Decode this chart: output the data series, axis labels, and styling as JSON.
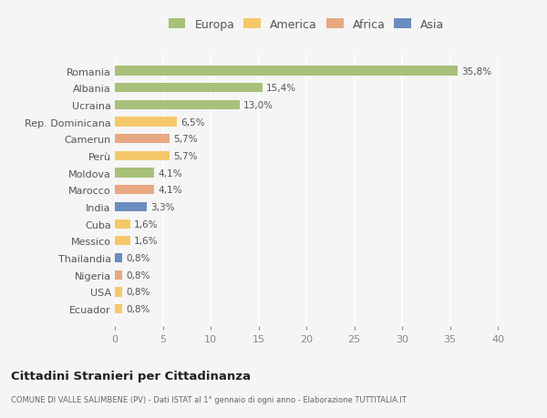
{
  "categories": [
    "Romania",
    "Albania",
    "Ucraina",
    "Rep. Dominicana",
    "Camerun",
    "Perù",
    "Moldova",
    "Marocco",
    "India",
    "Cuba",
    "Messico",
    "Thailandia",
    "Nigeria",
    "USA",
    "Ecuador"
  ],
  "values": [
    35.8,
    15.4,
    13.0,
    6.5,
    5.7,
    5.7,
    4.1,
    4.1,
    3.3,
    1.6,
    1.6,
    0.8,
    0.8,
    0.8,
    0.8
  ],
  "labels": [
    "35,8%",
    "15,4%",
    "13,0%",
    "6,5%",
    "5,7%",
    "5,7%",
    "4,1%",
    "4,1%",
    "3,3%",
    "1,6%",
    "1,6%",
    "0,8%",
    "0,8%",
    "0,8%",
    "0,8%"
  ],
  "colors": [
    "#a8c07a",
    "#a8c07a",
    "#a8c07a",
    "#f5c96a",
    "#e8a882",
    "#f5c96a",
    "#a8c07a",
    "#e8a882",
    "#6b8cbf",
    "#f5c96a",
    "#f5c96a",
    "#6b8cbf",
    "#e8a882",
    "#f5c96a",
    "#f5c96a"
  ],
  "legend_labels": [
    "Europa",
    "America",
    "Africa",
    "Asia"
  ],
  "legend_colors": [
    "#a8c07a",
    "#f5c96a",
    "#e8a882",
    "#6b8cbf"
  ],
  "title": "Cittadini Stranieri per Cittadinanza",
  "subtitle": "COMUNE DI VALLE SALIMBENE (PV) - Dati ISTAT al 1° gennaio di ogni anno - Elaborazione TUTTITALIA.IT",
  "xlim": [
    0,
    40
  ],
  "xticks": [
    0,
    5,
    10,
    15,
    20,
    25,
    30,
    35,
    40
  ],
  "bg_color": "#f5f5f5",
  "grid_color": "#ffffff",
  "bar_height": 0.55
}
